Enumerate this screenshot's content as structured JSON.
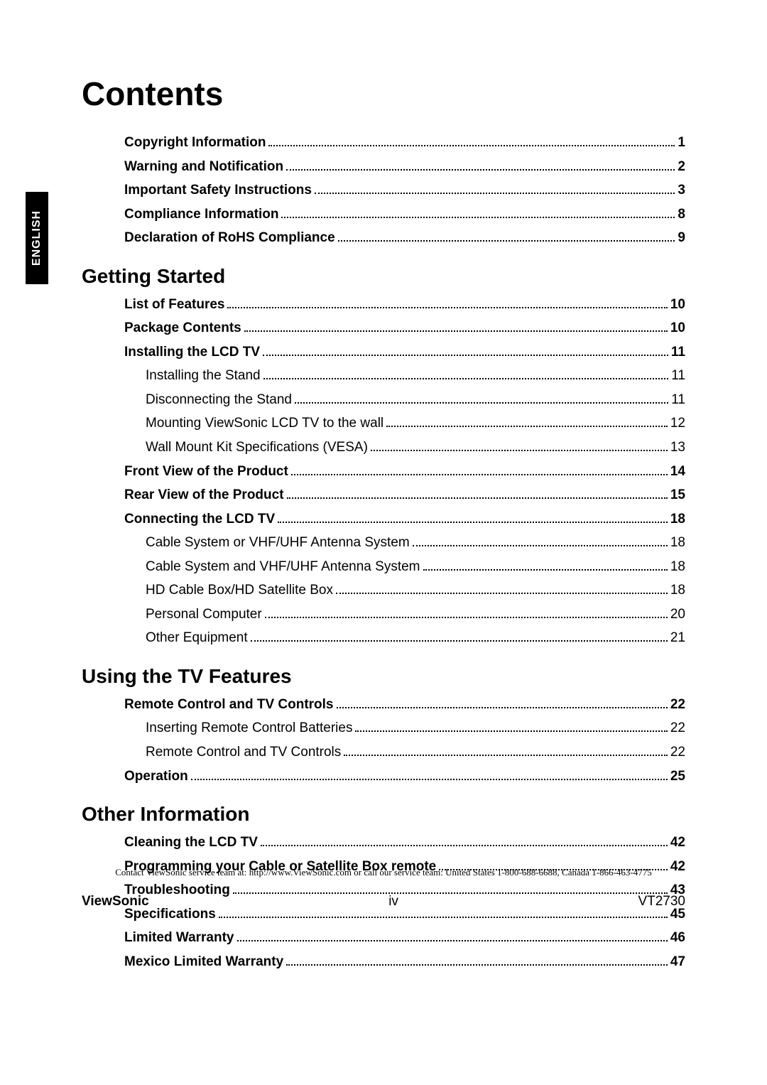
{
  "sideTab": "ENGLISH",
  "title": "Contents",
  "sections": [
    {
      "heading": null,
      "items": [
        {
          "label": "Copyright Information",
          "page": "1",
          "bold": true
        },
        {
          "label": "Warning and Notification",
          "page": "2",
          "bold": true
        },
        {
          "label": "Important Safety Instructions",
          "page": "3",
          "bold": true
        },
        {
          "label": "Compliance Information",
          "page": "8",
          "bold": true
        },
        {
          "label": "Declaration of RoHS Compliance",
          "page": "9",
          "bold": true
        }
      ]
    },
    {
      "heading": "Getting Started",
      "items": [
        {
          "label": "List of Features",
          "page": "10",
          "bold": true
        },
        {
          "label": "Package Contents",
          "page": "10",
          "bold": true
        },
        {
          "label": "Installing the LCD TV",
          "page": "11",
          "bold": true
        },
        {
          "label": "Installing the Stand",
          "page": "11",
          "bold": false,
          "sub": true
        },
        {
          "label": "Disconnecting the Stand",
          "page": "11",
          "bold": false,
          "sub": true
        },
        {
          "label": "Mounting ViewSonic LCD TV to the wall",
          "page": "12",
          "bold": false,
          "sub": true
        },
        {
          "label": "Wall Mount Kit Specifications (VESA)",
          "page": "13",
          "bold": false,
          "sub": true
        },
        {
          "label": "Front View of the Product",
          "page": "14",
          "bold": true
        },
        {
          "label": "Rear View of the Product",
          "page": "15",
          "bold": true
        },
        {
          "label": "Connecting the LCD TV",
          "page": "18",
          "bold": true
        },
        {
          "label": "Cable System or VHF/UHF Antenna System",
          "page": "18",
          "bold": false,
          "sub": true
        },
        {
          "label": "Cable System and VHF/UHF Antenna System",
          "page": "18",
          "bold": false,
          "sub": true
        },
        {
          "label": "HD Cable Box/HD Satellite Box",
          "page": "18",
          "bold": false,
          "sub": true
        },
        {
          "label": "Personal Computer",
          "page": "20",
          "bold": false,
          "sub": true
        },
        {
          "label": "Other Equipment",
          "page": "21",
          "bold": false,
          "sub": true
        }
      ]
    },
    {
      "heading": "Using the TV Features",
      "items": [
        {
          "label": "Remote Control and TV Controls",
          "page": "22",
          "bold": true
        },
        {
          "label": "Inserting Remote Control Batteries",
          "page": "22",
          "bold": false,
          "sub": true
        },
        {
          "label": "Remote Control and TV Controls",
          "page": "22",
          "bold": false,
          "sub": true
        },
        {
          "label": "Operation",
          "page": "25",
          "bold": true
        }
      ]
    },
    {
      "heading": "Other Information",
      "items": [
        {
          "label": "Cleaning the LCD TV",
          "page": "42",
          "bold": true
        },
        {
          "label": "Programming your Cable or Satellite Box remote",
          "page": "42",
          "bold": true
        },
        {
          "label": "Troubleshooting",
          "page": "43",
          "bold": true
        },
        {
          "label": "Specifications",
          "page": "45",
          "bold": true
        },
        {
          "label": "Limited Warranty",
          "page": "46",
          "bold": true
        },
        {
          "label": "Mexico Limited Warranty",
          "page": "47",
          "bold": true
        }
      ]
    }
  ],
  "footer": {
    "contact": "Contact ViewSonic service team at: http://www.ViewSonic.com or call our service team: United States 1-800-688-6688, Canada 1-866-463-4775",
    "brand": "ViewSonic",
    "pageNumber": "iv",
    "model": "VT2730"
  }
}
